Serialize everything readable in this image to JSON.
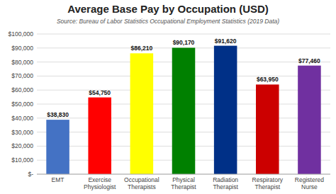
{
  "chart_data": {
    "type": "bar",
    "title": "Average Base Pay by Occupation (USD)",
    "subtitle": "Source: Bureau of Labor Statistics Occupational Employment Statistics (2019 Data)",
    "categories": [
      "EMT",
      "Exercise\nPhysiologist",
      "Occupational\nTherapists",
      "Physical\nTherapist",
      "Radiation\nTherapist",
      "Respiratory\nTherapist",
      "Registered\nNurse"
    ],
    "values": [
      38830,
      54750,
      86210,
      90170,
      91620,
      63950,
      77460
    ],
    "value_labels": [
      "$38,830",
      "$54,750",
      "$86,210",
      "$90,170",
      "$91,620",
      "$63,950",
      "$77,460"
    ],
    "colors": [
      "#4472C4",
      "#FF0000",
      "#FFFF00",
      "#008000",
      "#003087",
      "#CC0000",
      "#7030A0"
    ],
    "ylim": [
      0,
      100000
    ],
    "yticks": [
      {
        "value": 0,
        "label": "$-"
      },
      {
        "value": 10000,
        "label": "$10,000"
      },
      {
        "value": 20000,
        "label": "$20,000"
      },
      {
        "value": 30000,
        "label": "$30,000"
      },
      {
        "value": 40000,
        "label": "$40,000"
      },
      {
        "value": 50000,
        "label": "$50,000"
      },
      {
        "value": 60000,
        "label": "$60,000"
      },
      {
        "value": 70000,
        "label": "$70,000"
      },
      {
        "value": 80000,
        "label": "$80,000"
      },
      {
        "value": 90000,
        "label": "$90,000"
      },
      {
        "value": 100000,
        "label": "$100,000"
      }
    ],
    "grid": true,
    "data_labels": true
  }
}
